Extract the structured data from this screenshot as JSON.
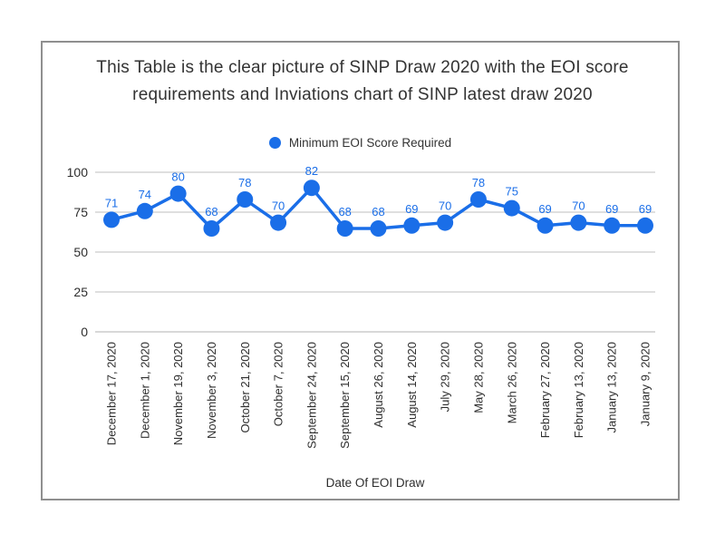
{
  "header": {
    "line1": "This Table is the clear picture of SINP Draw 2020 with the EOI score",
    "line2": "requirements and Inviations chart of SINP latest draw 2020"
  },
  "legend": {
    "label": "Minimum EOI Score Required"
  },
  "colors": {
    "accent": "#1a6ee8",
    "grid": "#cccccc",
    "axis_text": "#2e2e2e",
    "frame_border": "#8f8f8f",
    "background": "#ffffff"
  },
  "chart_data": {
    "type": "line",
    "title": "This Table is the clear picture of SINP Draw 2020 with the EOI score requirements and Inviations chart of SINP latest draw 2020",
    "xlabel": "Date Of EOI Draw",
    "ylabel": "",
    "ylim": [
      0,
      100
    ],
    "yticks": [
      0,
      25,
      50,
      75,
      100
    ],
    "grid": true,
    "legend_position": "top",
    "point_labels": true,
    "categories": [
      "December 17, 2020",
      "December 1, 2020",
      "November 19, 2020",
      "November 3, 2020",
      "October 21, 2020",
      "October 7, 2020",
      "September 24, 2020",
      "September 15, 2020",
      "August 26, 2020",
      "August 14, 2020",
      "July 29, 2020",
      "May 28, 2020",
      "March 26, 2020",
      "February 27, 2020",
      "February 13, 2020",
      "January 13, 2020",
      "January 9, 2020"
    ],
    "series": [
      {
        "name": "Minimum EOI Score Required",
        "values": [
          71,
          74,
          80,
          68,
          78,
          70,
          82,
          68,
          68,
          69,
          70,
          78,
          75,
          69,
          70,
          69,
          69
        ]
      }
    ]
  }
}
